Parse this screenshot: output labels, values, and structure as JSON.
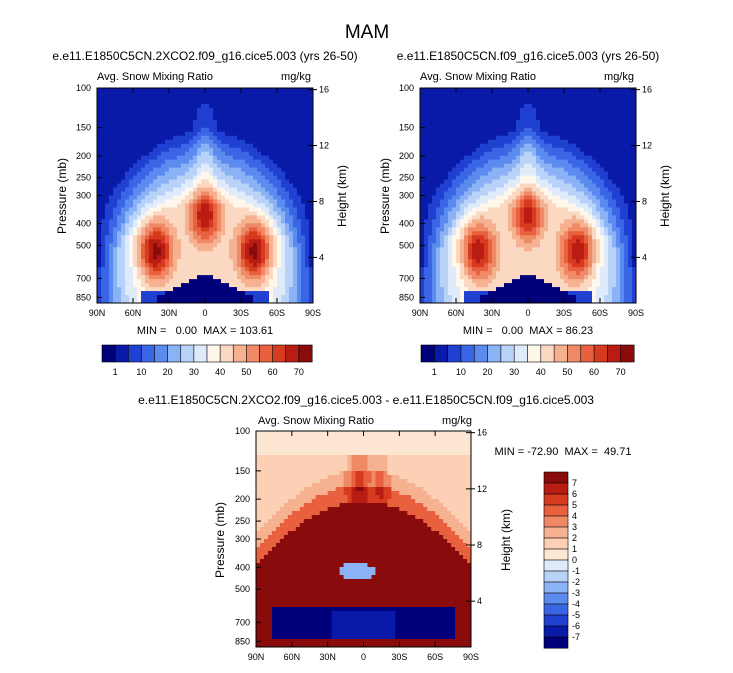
{
  "page_title": "MAM",
  "colors": {
    "base": [
      "#00007a",
      "#0a1aa8",
      "#1f40d0",
      "#3a66e6",
      "#5c8bf0",
      "#8bb2f5",
      "#b8d2f8",
      "#dfeafb",
      "#fff7ea",
      "#fbd8c2",
      "#f6b191",
      "#f08a66",
      "#e8603e",
      "#d63a1f",
      "#b91c12",
      "#8a0b0b"
    ],
    "diff": [
      "#00007a",
      "#0a1aa8",
      "#1f40d0",
      "#3a66e6",
      "#5c8bf0",
      "#8bb2f5",
      "#b8d2f8",
      "#dfeafb",
      "#fde6d2",
      "#fbd0b4",
      "#f6b191",
      "#f08a66",
      "#e8603e",
      "#d63a1f",
      "#b91c12",
      "#8a0b0b"
    ]
  },
  "chart_data": [
    {
      "type": "heatmap",
      "title": "e.e11.E1850C5CN.2XCO2.f09_g16.cice5.003 (yrs 26-50)",
      "left_label": "Avg. Snow Mixing Ratio",
      "right_label": "mg/kg",
      "ylabel": "Pressure (mb)",
      "ylabel_right": "Height (km)",
      "xticks": [
        "90N",
        "60N",
        "30N",
        "0",
        "30S",
        "60S",
        "90S"
      ],
      "yticks": [
        "100",
        "150",
        "200",
        "250",
        "300",
        "400",
        "500",
        "700",
        "850"
      ],
      "yticks_right": [
        "16",
        "12",
        "8",
        "4"
      ],
      "min": 0.0,
      "max": 103.61,
      "stats": "MIN =   0.00  MAX = 103.61",
      "colorbar_labels": [
        "1",
        "10",
        "20",
        "30",
        "40",
        "50",
        "60",
        "70"
      ]
    },
    {
      "type": "heatmap",
      "title": "e.e11.E1850C5CN.f09_g16.cice5.003 (yrs 26-50)",
      "left_label": "Avg. Snow Mixing Ratio",
      "right_label": "mg/kg",
      "ylabel": "Pressure (mb)",
      "ylabel_right": "Height (km)",
      "xticks": [
        "90N",
        "60N",
        "30N",
        "0",
        "30S",
        "60S",
        "90S"
      ],
      "yticks": [
        "100",
        "150",
        "200",
        "250",
        "300",
        "400",
        "500",
        "700",
        "850"
      ],
      "yticks_right": [
        "16",
        "12",
        "8",
        "4"
      ],
      "min": 0.0,
      "max": 86.23,
      "stats": "MIN =   0.00  MAX = 86.23",
      "colorbar_labels": [
        "1",
        "10",
        "20",
        "30",
        "40",
        "50",
        "60",
        "70"
      ]
    },
    {
      "type": "heatmap",
      "title": "e.e11.E1850C5CN.2XCO2.f09_g16.cice5.003 - e.e11.E1850C5CN.f09_g16.cice5.003",
      "left_label": "Avg. Snow Mixing Ratio",
      "right_label": "mg/kg",
      "ylabel": "Pressure (mb)",
      "ylabel_right": "Height (km)",
      "xticks": [
        "90N",
        "60N",
        "30N",
        "0",
        "30S",
        "60S",
        "90S"
      ],
      "yticks": [
        "100",
        "150",
        "200",
        "250",
        "300",
        "400",
        "500",
        "700",
        "850"
      ],
      "yticks_right": [
        "16",
        "12",
        "8",
        "4"
      ],
      "min": -72.9,
      "max": 49.71,
      "stats": "MIN = -72.90  MAX =  49.71",
      "colorbar_labels": [
        "7",
        "6",
        "5",
        "4",
        "3",
        "2",
        "1",
        "0",
        "-1",
        "-2",
        "-3",
        "-4",
        "-5",
        "-6",
        "-7"
      ]
    }
  ]
}
